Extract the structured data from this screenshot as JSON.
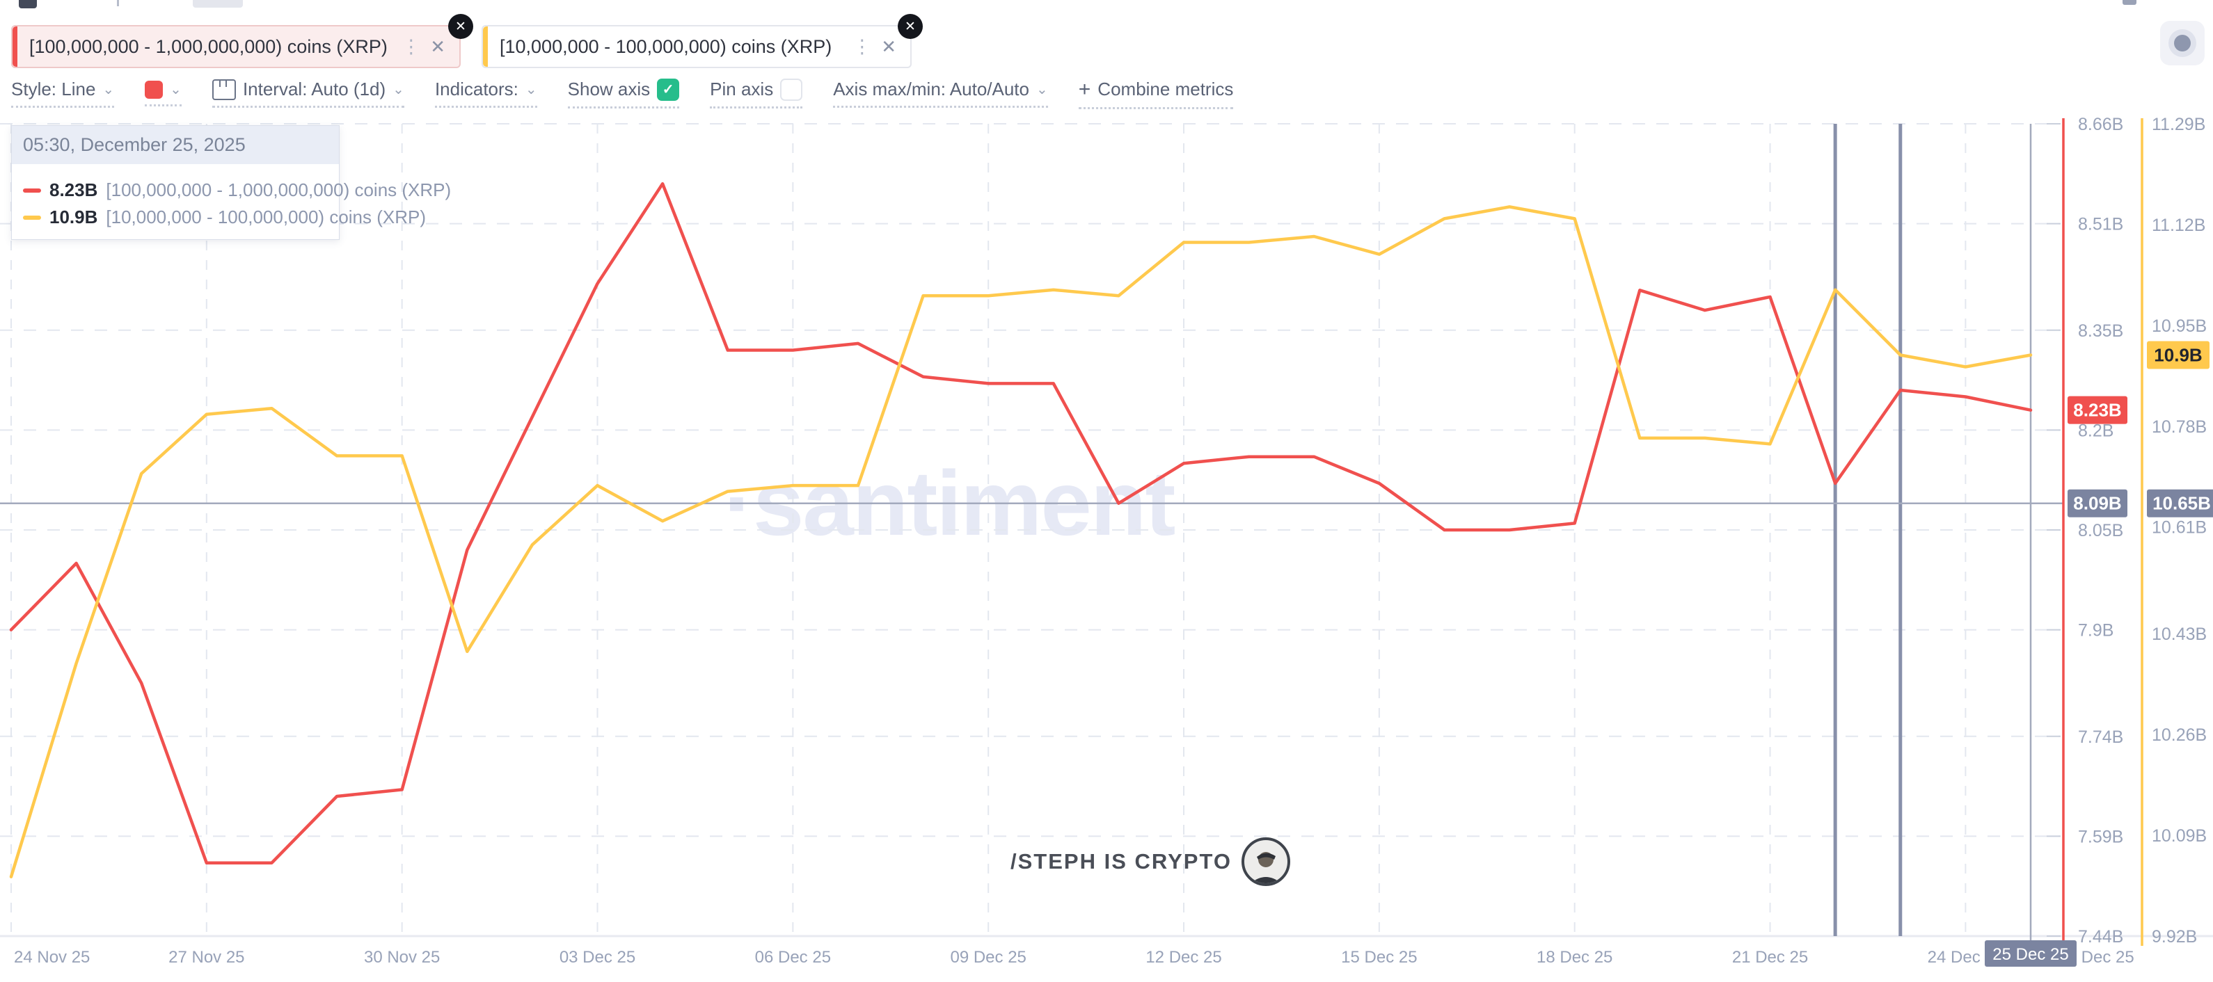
{
  "icons": {
    "chevron": "⌄",
    "kebab": "⋮",
    "close": "✕",
    "check": "✓",
    "plus": "+"
  },
  "tabs": [
    {
      "label": "[100,000,000 - 1,000,000,000) coins (XRP)",
      "color": "#F0504E"
    },
    {
      "label": "[10,000,000 - 100,000,000) coins (XRP)",
      "color": "#FFC94D"
    }
  ],
  "toolbar": {
    "style_label": "Style: Line",
    "interval_label": "Interval: Auto (1d)",
    "indicators_label": "Indicators:",
    "show_axis_label": "Show axis",
    "pin_axis_label": "Pin axis",
    "axis_maxmin_label": "Axis max/min: Auto/Auto",
    "combine_label": "Combine metrics"
  },
  "tooltip": {
    "timestamp": "05:30, December 25, 2025",
    "rows": [
      {
        "value": "8.23B",
        "label": "[100,000,000 - 1,000,000,000) coins (XRP)",
        "color": "#F0504E"
      },
      {
        "value": "10.9B",
        "label": "[10,000,000 - 100,000,000) coins (XRP)",
        "color": "#FFC94D"
      }
    ]
  },
  "watermark": "·santiment",
  "footer": {
    "handle": "/STEPH IS CRYPTO"
  },
  "chart_data": {
    "type": "line",
    "x": [
      "24 Nov 25",
      "25 Nov 25",
      "26 Nov 25",
      "27 Nov 25",
      "28 Nov 25",
      "29 Nov 25",
      "30 Nov 25",
      "01 Dec 25",
      "02 Dec 25",
      "03 Dec 25",
      "04 Dec 25",
      "05 Dec 25",
      "06 Dec 25",
      "07 Dec 25",
      "08 Dec 25",
      "09 Dec 25",
      "10 Dec 25",
      "11 Dec 25",
      "12 Dec 25",
      "13 Dec 25",
      "14 Dec 25",
      "15 Dec 25",
      "16 Dec 25",
      "17 Dec 25",
      "18 Dec 25",
      "19 Dec 25",
      "20 Dec 25",
      "21 Dec 25",
      "22 Dec 25",
      "23 Dec 25",
      "24 Dec 25",
      "25 Dec 25"
    ],
    "series": [
      {
        "name": "[100,000,000 - 1,000,000,000) coins (XRP)",
        "axis": "left",
        "color": "#F0504E",
        "badge": "8.23B",
        "values": [
          7.9,
          8.0,
          7.82,
          7.55,
          7.55,
          7.65,
          7.66,
          8.02,
          8.22,
          8.42,
          8.57,
          8.32,
          8.32,
          8.33,
          8.28,
          8.27,
          8.27,
          8.09,
          8.15,
          8.16,
          8.16,
          8.12,
          8.05,
          8.05,
          8.06,
          8.41,
          8.38,
          8.4,
          8.12,
          8.26,
          8.25,
          8.23
        ]
      },
      {
        "name": "[10,000,000 - 100,000,000) coins (XRP)",
        "axis": "right",
        "color": "#FFC94D",
        "badge": "10.9B",
        "values": [
          10.02,
          10.38,
          10.7,
          10.8,
          10.81,
          10.73,
          10.73,
          10.4,
          10.58,
          10.68,
          10.62,
          10.67,
          10.68,
          10.68,
          11.0,
          11.0,
          11.01,
          11.0,
          11.09,
          11.09,
          11.1,
          11.07,
          11.13,
          11.15,
          11.13,
          10.76,
          10.76,
          10.75,
          11.01,
          10.9,
          10.88,
          10.9
        ]
      }
    ],
    "left_axis": {
      "min": 7.44,
      "max": 8.66,
      "ticks": [
        "8.66B",
        "8.51B",
        "8.35B",
        "8.2B",
        "8.05B",
        "7.9B",
        "7.74B",
        "7.59B",
        "7.44B"
      ]
    },
    "right_axis": {
      "min": 9.92,
      "max": 11.29,
      "ticks": [
        "11.29B",
        "11.12B",
        "10.95B",
        "10.78B",
        "10.61B",
        "10.43B",
        "10.26B",
        "10.09B",
        "9.92B"
      ]
    },
    "x_axis_labels": [
      "24 Nov 25",
      "27 Nov 25",
      "30 Nov 25",
      "03 Dec 25",
      "06 Dec 25",
      "09 Dec 25",
      "12 Dec 25",
      "15 Dec 25",
      "18 Dec 25",
      "21 Dec 25",
      "24 Dec 25"
    ],
    "partial_x_label": "26 Dec 25",
    "crosshair": {
      "date": "25 Dec 25",
      "left_label": "8.09B",
      "right_label": "10.65B"
    },
    "marker_dates": [
      "22 Dec 25",
      "23 Dec 25"
    ],
    "grid": true,
    "legend_position": "tooltip-top-left"
  },
  "ui_colors": {
    "red": "#F0504E",
    "yellow": "#FFC94D",
    "gray_badge": "#7B84A0",
    "marker_line": "#8890AA",
    "crosshair_line": "#A3AABD",
    "grid_line": "#E3E7EF",
    "axis_bottom": "#E8EAF0",
    "axis_label": "#98A2B8",
    "badge_text_dark": "#20242E"
  }
}
